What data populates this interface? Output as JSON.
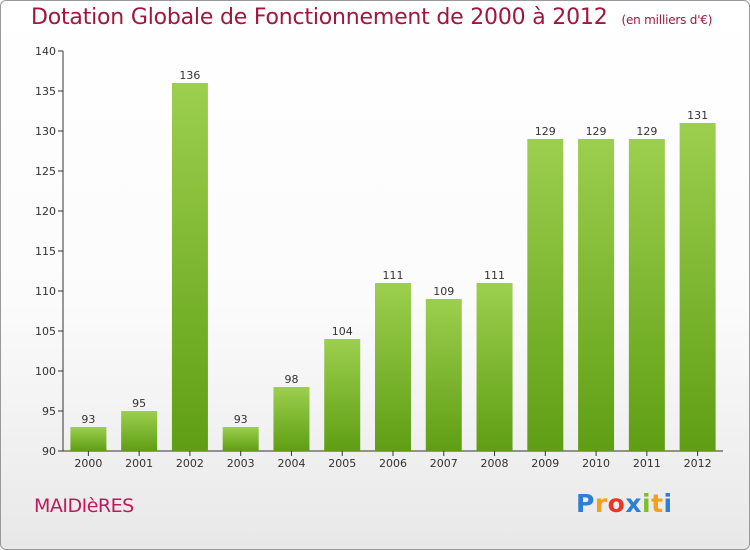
{
  "header": {
    "title": "Dotation Globale de Fonctionnement de 2000 à 2012",
    "unit": "(en milliers d'€)"
  },
  "commune": "MAIDIèRES",
  "brand": {
    "letters": [
      {
        "ch": "P",
        "color": "#2b7fd6"
      },
      {
        "ch": "r",
        "color": "#f3a11b"
      },
      {
        "ch": "o",
        "color": "#e8362a"
      },
      {
        "ch": "x",
        "color": "#2b7fd6"
      },
      {
        "ch": "i",
        "color": "#7cbf2a"
      },
      {
        "ch": "t",
        "color": "#f3a11b"
      },
      {
        "ch": "i",
        "color": "#2b7fd6"
      }
    ]
  },
  "colors": {
    "bar_light": "#9ccf4e",
    "bar_dark": "#5f9e14",
    "title": "#a0163c",
    "commune": "#c2185b"
  },
  "chart_data": {
    "type": "bar",
    "title": "Dotation Globale de Fonctionnement de 2000 à 2012",
    "subtitle": "(en milliers d'€)",
    "xlabel": "",
    "ylabel": "",
    "categories": [
      "2000",
      "2001",
      "2002",
      "2003",
      "2004",
      "2005",
      "2006",
      "2007",
      "2008",
      "2009",
      "2010",
      "2011",
      "2012"
    ],
    "values": [
      93,
      95,
      136,
      93,
      98,
      104,
      111,
      109,
      111,
      129,
      129,
      129,
      131
    ],
    "ylim": [
      90,
      140
    ],
    "yticks": [
      90,
      95,
      100,
      105,
      110,
      115,
      120,
      125,
      130,
      135,
      140
    ],
    "grid": false,
    "legend": "none"
  }
}
